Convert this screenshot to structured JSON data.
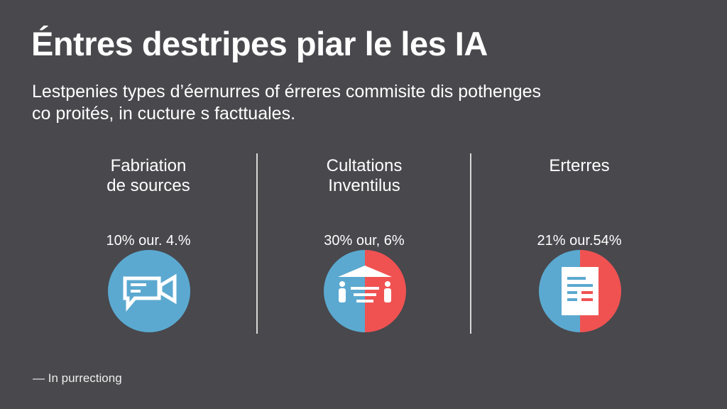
{
  "title": "Éntres destripes piar le les IA",
  "subtitle_lines": [
    "Lestpenies types d’éernurres of érreres commisite dis pothenges",
    "co proités, in cucture s facttuales."
  ],
  "colors": {
    "background": "#48484d",
    "blue": "#5ba9d0",
    "red": "#f05252"
  },
  "columns": [
    {
      "heading_lines": [
        "Fabriation",
        "de sources"
      ],
      "stat": "10% our. 4.%",
      "icon": "video-chat-icon",
      "split": false
    },
    {
      "heading_lines": [
        "Cultations",
        "Inventilus"
      ],
      "stat": "30% our, 6%",
      "icon": "people-building-icon",
      "split": true
    },
    {
      "heading_lines": [
        "Erterres"
      ],
      "stat": "21% our.54%",
      "icon": "document-icon",
      "split": true
    }
  ],
  "footer": "— In purrectiong"
}
